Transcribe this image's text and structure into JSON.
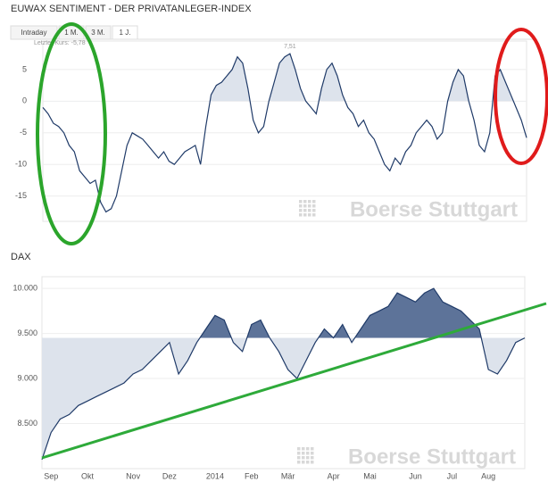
{
  "tabs": [
    "Intraday",
    "1 M.",
    "3 M.",
    "1 J."
  ],
  "chart_data": [
    {
      "type": "line",
      "title": "EUWAX SENTIMENT - DER PRIVATANLEGER-INDEX",
      "last_label": "Letzter Kurs: -5,78",
      "max_label": "7,51",
      "watermark": "Boerse Stuttgart",
      "values": [
        -1,
        -2,
        -3.5,
        -4,
        -5,
        -7,
        -8,
        -11,
        -12,
        -13,
        -12.5,
        -16,
        -17.5,
        -17,
        -15,
        -11,
        -7,
        -5,
        -5.5,
        -6,
        -7,
        -8,
        -9,
        -8,
        -9.5,
        -10,
        -9,
        -8,
        -7.5,
        -7,
        -10,
        -4,
        1,
        2.5,
        3,
        4,
        5,
        7,
        6,
        2,
        -3,
        -5,
        -4,
        0,
        3,
        6,
        7,
        7.51,
        5,
        2,
        0,
        -1,
        -2,
        2,
        5,
        6,
        4,
        1,
        -1,
        -2,
        -4,
        -3,
        -5,
        -6,
        -8,
        -10,
        -11,
        -9,
        -10,
        -8,
        -7,
        -5,
        -4,
        -3,
        -4,
        -6,
        -5,
        0,
        3,
        5,
        4,
        0,
        -3,
        -7,
        -8,
        -5,
        4,
        5,
        3,
        1,
        -1,
        -3,
        -5.78
      ],
      "ylim": [
        -19,
        9.5
      ],
      "yticks": [
        5,
        0,
        -5,
        -10,
        -15
      ],
      "base": 0,
      "color": "#1f3a68",
      "fill_above": "#dde3ec",
      "grid": true
    },
    {
      "type": "line",
      "title": "DAX",
      "watermark": "Boerse Stuttgart",
      "categories": [
        null,
        "Sep",
        null,
        null,
        null,
        "Okt",
        null,
        null,
        null,
        null,
        "Nov",
        null,
        null,
        null,
        "Dez",
        null,
        null,
        null,
        null,
        "2014",
        null,
        null,
        null,
        "Feb",
        null,
        null,
        null,
        "Mär",
        null,
        null,
        null,
        null,
        "Apr",
        null,
        null,
        null,
        "Mai",
        null,
        null,
        null,
        null,
        "Jun",
        null,
        null,
        null,
        "Jul",
        null,
        null,
        null,
        "Aug",
        null,
        null,
        null,
        null
      ],
      "values": [
        8100,
        8400,
        8550,
        8600,
        8700,
        8750,
        8800,
        8850,
        8900,
        8950,
        9050,
        9100,
        9200,
        9300,
        9400,
        9050,
        9200,
        9400,
        9550,
        9700,
        9650,
        9400,
        9300,
        9600,
        9650,
        9450,
        9300,
        9100,
        9000,
        9200,
        9400,
        9550,
        9450,
        9600,
        9400,
        9550,
        9700,
        9750,
        9800,
        9950,
        9900,
        9850,
        9950,
        10000,
        9850,
        9800,
        9750,
        9650,
        9550,
        9100,
        9050,
        9200,
        9400,
        9450
      ],
      "ylim": [
        8000,
        10130
      ],
      "yticks": [
        {
          "value": 10000,
          "label": "10.000"
        },
        {
          "value": 9500,
          "label": "9.500"
        },
        {
          "value": 9000,
          "label": "9.000"
        },
        {
          "value": 8500,
          "label": "8.500"
        }
      ],
      "base": 9450,
      "color": "#1f3a68",
      "fill_above": "#5d7399",
      "fill_below": "#dde3ec",
      "grid": true
    }
  ]
}
